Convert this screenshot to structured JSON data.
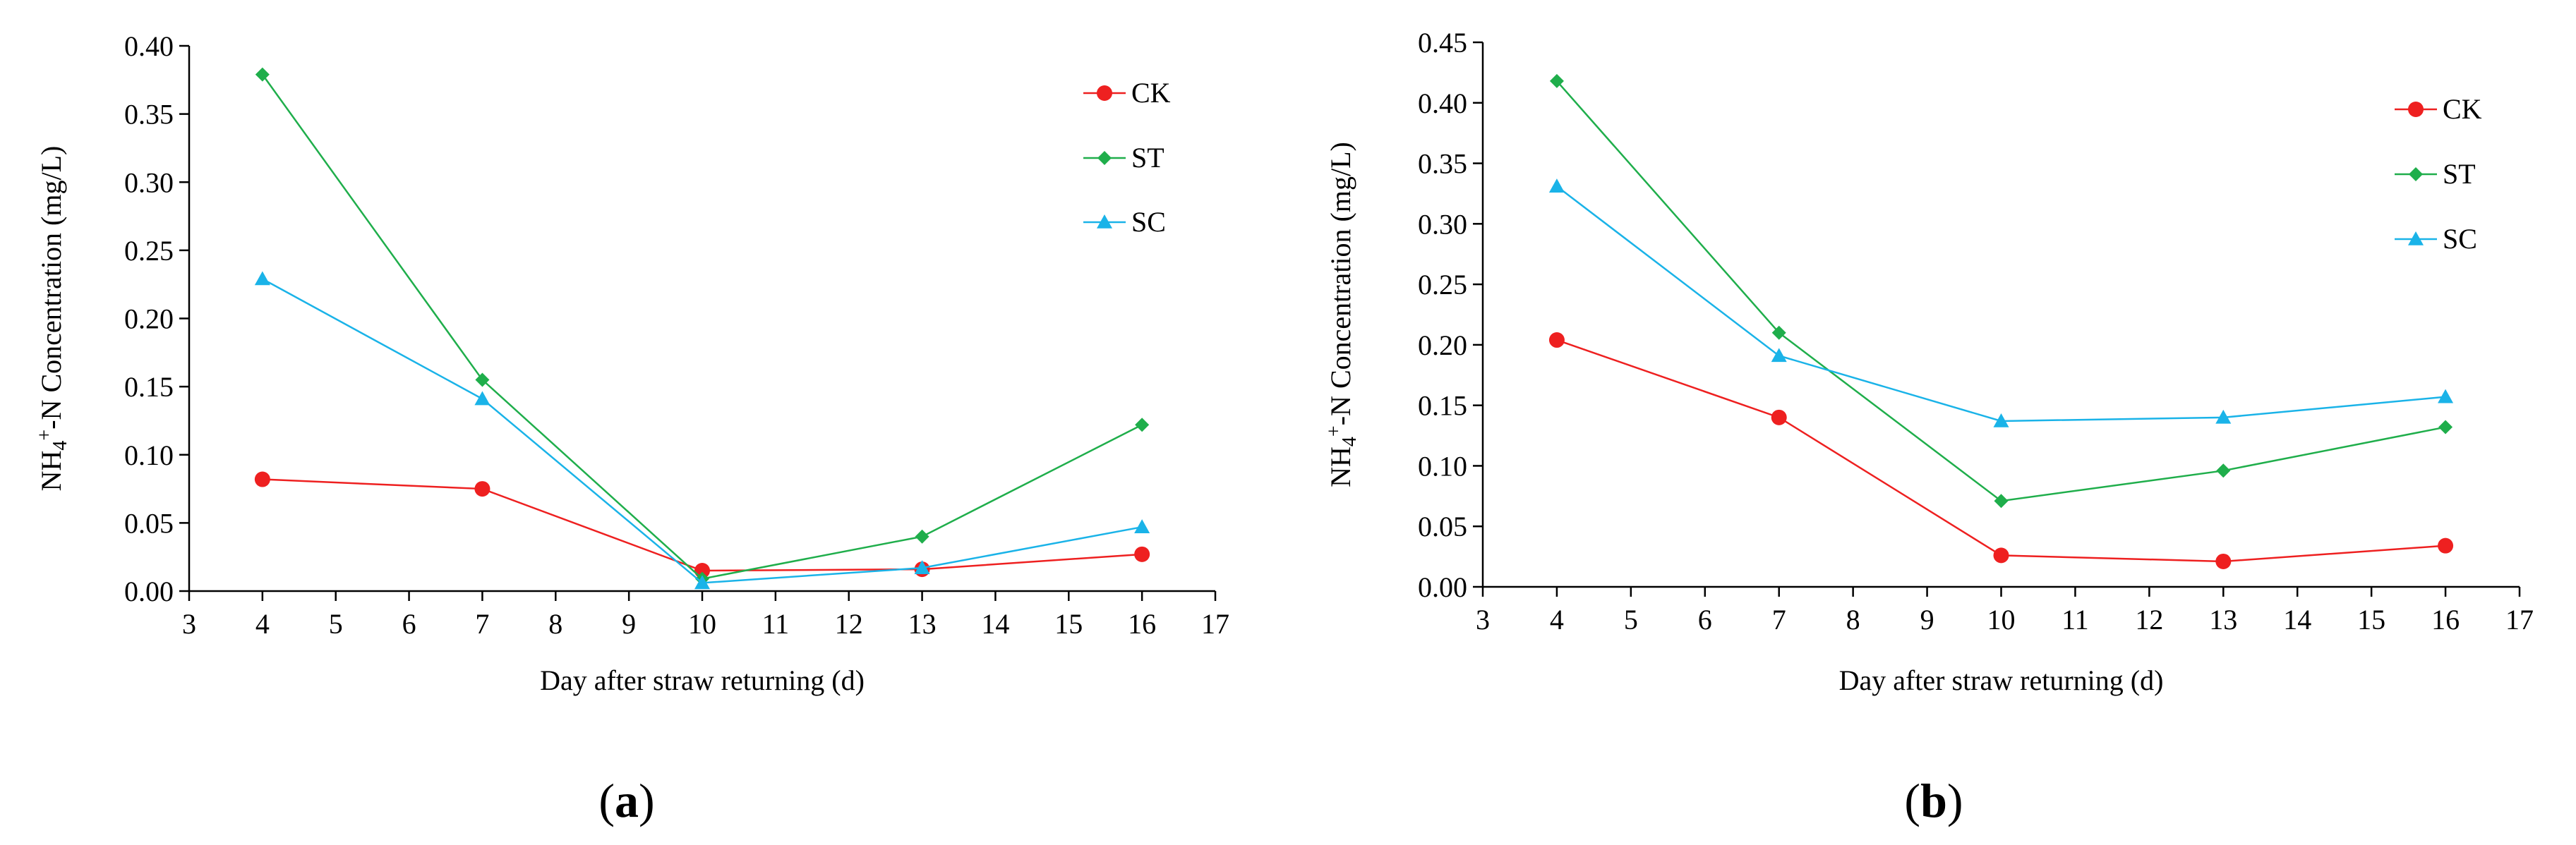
{
  "chart_data": [
    {
      "type": "line",
      "panel_label": "a",
      "ylabel_main": "NH",
      "ylabel_sub": "4",
      "ylabel_sup": "+",
      "ylabel_rest": "-N Concentration  (mg/L)",
      "xlabel": "Day after straw returning  (d)",
      "xlim": [
        3,
        17
      ],
      "ylim": [
        0,
        0.4
      ],
      "xticks": [
        "3",
        "4",
        "5",
        "6",
        "7",
        "8",
        "9",
        "10",
        "11",
        "12",
        "13",
        "14",
        "15",
        "16",
        "17"
      ],
      "yticks": [
        "0.00",
        "0.05",
        "0.10",
        "0.15",
        "0.20",
        "0.25",
        "0.30",
        "0.35",
        "0.40"
      ],
      "legend_position": "top-right",
      "x": [
        4,
        7,
        10,
        13,
        16
      ],
      "series": [
        {
          "name": "CK",
          "color": "#ee2020",
          "marker": "circle",
          "values": [
            0.082,
            0.075,
            0.015,
            0.016,
            0.027
          ]
        },
        {
          "name": "ST",
          "color": "#1fae4b",
          "marker": "diamond",
          "values": [
            0.379,
            0.155,
            0.009,
            0.04,
            0.122
          ]
        },
        {
          "name": "SC",
          "color": "#1ab3e8",
          "marker": "triangle",
          "values": [
            0.229,
            0.141,
            0.006,
            0.017,
            0.047
          ]
        }
      ]
    },
    {
      "type": "line",
      "panel_label": "b",
      "ylabel_main": "NH",
      "ylabel_sub": "4",
      "ylabel_sup": "+",
      "ylabel_rest": "-N Concentration  (mg/L)",
      "xlabel": "Day after straw returning  (d)",
      "xlim": [
        3,
        17
      ],
      "ylim": [
        0,
        0.45
      ],
      "xticks": [
        "3",
        "4",
        "5",
        "6",
        "7",
        "8",
        "9",
        "10",
        "11",
        "12",
        "13",
        "14",
        "15",
        "16",
        "17"
      ],
      "yticks": [
        "0.00",
        "0.05",
        "0.10",
        "0.15",
        "0.20",
        "0.25",
        "0.30",
        "0.35",
        "0.40",
        "0.45"
      ],
      "legend_position": "top-right",
      "x": [
        4,
        7,
        10,
        13,
        16
      ],
      "series": [
        {
          "name": "CK",
          "color": "#ee2020",
          "marker": "circle",
          "values": [
            0.204,
            0.14,
            0.026,
            0.021,
            0.034
          ]
        },
        {
          "name": "ST",
          "color": "#1fae4b",
          "marker": "diamond",
          "values": [
            0.418,
            0.21,
            0.071,
            0.096,
            0.132
          ]
        },
        {
          "name": "SC",
          "color": "#1ab3e8",
          "marker": "triangle",
          "values": [
            0.331,
            0.191,
            0.137,
            0.14,
            0.157
          ]
        }
      ]
    }
  ]
}
